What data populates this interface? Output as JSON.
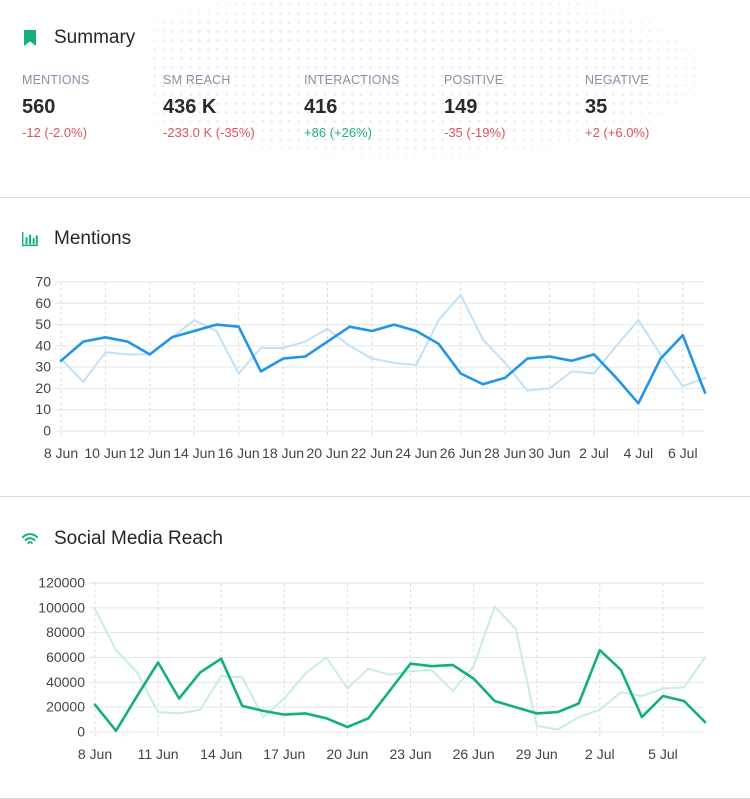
{
  "summary": {
    "title": "Summary",
    "metrics": [
      {
        "label": "MENTIONS",
        "value": "560",
        "delta": "-12  (-2.0%)",
        "trend": "neg"
      },
      {
        "label": "SM REACH",
        "value": "436 K",
        "delta": "-233.0 K  (-35%)",
        "trend": "neg"
      },
      {
        "label": "INTERACTIONS",
        "value": "416",
        "delta": "+86  (+26%)",
        "trend": "pos"
      },
      {
        "label": "POSITIVE",
        "value": "149",
        "delta": "-35  (-19%)",
        "trend": "neg"
      },
      {
        "label": "NEGATIVE",
        "value": "35",
        "delta": "+2  (+6.0%)",
        "trend": "neg"
      }
    ]
  },
  "mentions_section": {
    "title": "Mentions",
    "icon": "bar-chart-icon"
  },
  "reach_section": {
    "title": "Social Media Reach",
    "icon": "wifi-icon"
  },
  "colors": {
    "mentions_current": "#2196e8",
    "mentions_previous": "#bfe2fa",
    "reach_current": "#13b07a",
    "reach_previous": "#c7efd9",
    "negative": "#e0525f",
    "positive": "#1db07a",
    "summary_icon": "#16b07a"
  },
  "chart_data": [
    {
      "type": "line",
      "yticks": [
        0,
        10,
        20,
        30,
        40,
        50,
        60,
        70
      ],
      "ylim": [
        0,
        70
      ],
      "grid": true,
      "x_tick_labels": [
        "8 Jun",
        "10 Jun",
        "12 Jun",
        "14 Jun",
        "16 Jun",
        "18 Jun",
        "20 Jun",
        "22 Jun",
        "24 Jun",
        "26 Jun",
        "28 Jun",
        "30 Jun",
        "2 Jul",
        "4 Jul",
        "6 Jul"
      ],
      "series": [
        {
          "role": "previous",
          "values": [
            34,
            23,
            37,
            36,
            36,
            44,
            52,
            47,
            27,
            39,
            39,
            42,
            48,
            40,
            34,
            32,
            31,
            52,
            64,
            43,
            32,
            19,
            20,
            28,
            27,
            40,
            52,
            36,
            21,
            25
          ]
        },
        {
          "role": "current",
          "values": [
            33,
            42,
            44,
            42,
            36,
            44,
            47,
            50,
            49,
            28,
            34,
            35,
            42,
            49,
            47,
            50,
            47,
            41,
            27,
            22,
            25,
            34,
            35,
            33,
            36,
            25,
            13,
            34,
            45,
            18
          ]
        }
      ]
    },
    {
      "type": "line",
      "yticks": [
        0,
        20000,
        40000,
        60000,
        80000,
        100000,
        120000
      ],
      "ylim": [
        0,
        120000
      ],
      "grid": true,
      "x_tick_labels": [
        "8 Jun",
        "11 Jun",
        "14 Jun",
        "17 Jun",
        "20 Jun",
        "23 Jun",
        "26 Jun",
        "29 Jun",
        "2 Jul",
        "5 Jul"
      ],
      "series": [
        {
          "role": "previous",
          "values": [
            99000,
            66000,
            48000,
            16000,
            15000,
            18000,
            45000,
            44000,
            12000,
            27000,
            47000,
            60000,
            35000,
            51000,
            46000,
            49000,
            50000,
            33000,
            53000,
            101000,
            83000,
            5000,
            2000,
            12000,
            18000,
            32000,
            29000,
            35000,
            36000,
            60000
          ]
        },
        {
          "role": "current",
          "values": [
            22000,
            1000,
            29000,
            56000,
            27000,
            48000,
            59000,
            21000,
            17000,
            14000,
            15000,
            11000,
            4000,
            11000,
            33000,
            55000,
            53000,
            54000,
            43000,
            25000,
            20000,
            15000,
            16000,
            23000,
            66000,
            50000,
            12000,
            29000,
            25000,
            8000
          ]
        }
      ]
    }
  ]
}
